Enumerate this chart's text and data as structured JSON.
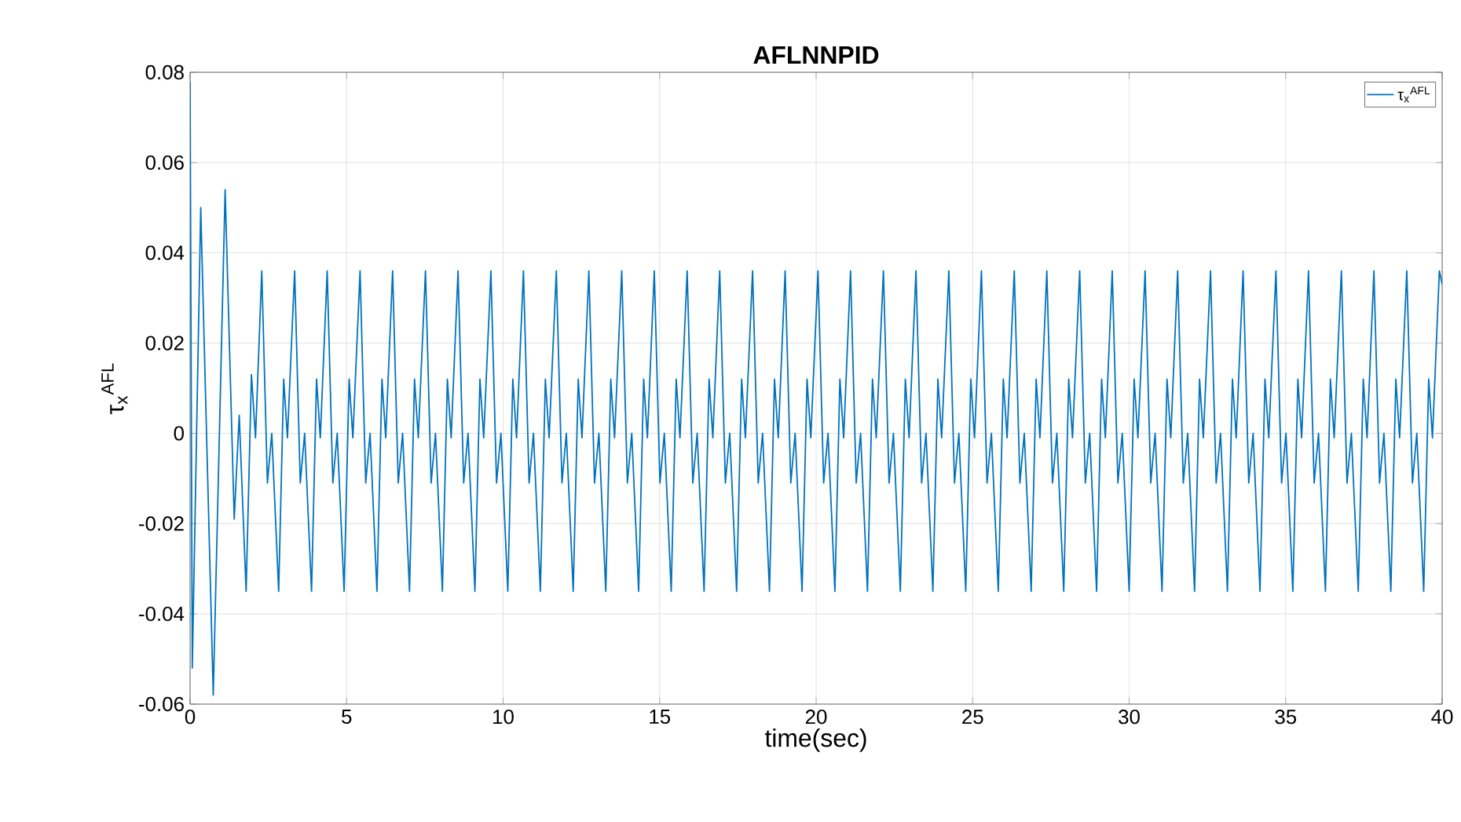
{
  "chart_data": {
    "type": "line",
    "title": "AFLNNPID",
    "xlabel": "time(sec)",
    "ylabel": "τ$_{x}$$^{AFL}$",
    "xlim": [
      0,
      40
    ],
    "ylim": [
      -0.06,
      0.08
    ],
    "xticks": [
      0,
      5,
      10,
      15,
      20,
      25,
      30,
      35,
      40
    ],
    "yticks": [
      -0.06,
      -0.04,
      -0.02,
      0,
      0.02,
      0.04,
      0.06,
      0.08
    ],
    "grid": true,
    "legend": "top right",
    "x": [
      0,
      0.07,
      0.34,
      0.74,
      1.12,
      1.41,
      1.57,
      1.79,
      1.96,
      2.09,
      2.29,
      2.47,
      2.61,
      2.83,
      2.99,
      3.11,
      3.34,
      3.52,
      3.66,
      3.88,
      4.04,
      4.16,
      4.38,
      4.56,
      4.7,
      4.92,
      5.08,
      5.2,
      5.43,
      5.61,
      5.75,
      5.97,
      6.13,
      6.25,
      6.47,
      6.65,
      6.79,
      7.01,
      7.17,
      7.29,
      7.52,
      7.7,
      7.84,
      8.06,
      8.22,
      8.34,
      8.56,
      8.74,
      8.88,
      9.1,
      9.26,
      9.38,
      9.61,
      9.79,
      9.93,
      10.15,
      10.31,
      10.43,
      10.65,
      10.83,
      10.97,
      11.19,
      11.35,
      11.47,
      11.7,
      11.88,
      12.02,
      12.24,
      12.4,
      12.52,
      12.74,
      12.92,
      13.06,
      13.28,
      13.44,
      13.56,
      13.79,
      13.97,
      14.11,
      14.33,
      14.49,
      14.61,
      14.83,
      15.01,
      15.15,
      15.37,
      15.53,
      15.65,
      15.88,
      16.06,
      16.2,
      16.42,
      16.58,
      16.7,
      16.92,
      17.1,
      17.24,
      17.46,
      17.62,
      17.74,
      17.97,
      18.15,
      18.29,
      18.51,
      18.67,
      18.79,
      19.01,
      19.19,
      19.33,
      19.55,
      19.71,
      19.83,
      20.06,
      20.24,
      20.38,
      20.6,
      20.76,
      20.88,
      21.1,
      21.28,
      21.42,
      21.64,
      21.8,
      21.92,
      22.15,
      22.33,
      22.47,
      22.69,
      22.85,
      22.97,
      23.19,
      23.37,
      23.51,
      23.73,
      23.89,
      24.01,
      24.24,
      24.42,
      24.56,
      24.78,
      24.94,
      25.06,
      25.28,
      25.46,
      25.6,
      25.82,
      25.98,
      26.1,
      26.33,
      26.51,
      26.65,
      26.87,
      27.03,
      27.15,
      27.37,
      27.55,
      27.69,
      27.91,
      28.07,
      28.19,
      28.42,
      28.6,
      28.74,
      28.96,
      29.12,
      29.24,
      29.46,
      29.64,
      29.78,
      30.0,
      30.16,
      30.28,
      30.51,
      30.69,
      30.83,
      31.05,
      31.21,
      31.33,
      31.55,
      31.73,
      31.87,
      32.09,
      32.25,
      32.37,
      32.6,
      32.78,
      32.92,
      33.14,
      33.3,
      33.42,
      33.64,
      33.82,
      33.96,
      34.18,
      34.34,
      34.46,
      34.69,
      34.87,
      35.01,
      35.23,
      35.39,
      35.51,
      35.73,
      35.91,
      36.05,
      36.27,
      36.43,
      36.55,
      36.78,
      36.96,
      37.1,
      37.32,
      37.48,
      37.6,
      37.82,
      38.0,
      38.14,
      38.36,
      38.52,
      38.64,
      38.87,
      39.05,
      39.19,
      39.41,
      39.57,
      39.69,
      39.91,
      40
    ],
    "series": [
      {
        "name": "τ$_{x}$$^{AFL}$",
        "color": "#0072bd",
        "values": [
          0.078,
          -0.052,
          0.05,
          -0.058,
          0.054,
          -0.019,
          0.004,
          -0.035,
          0.013,
          -0.001,
          0.036,
          -0.011,
          0,
          -0.035,
          0.012,
          -0.001,
          0.036,
          -0.011,
          0,
          -0.035,
          0.012,
          -0.001,
          0.036,
          -0.011,
          0,
          -0.035,
          0.012,
          -0.001,
          0.036,
          -0.011,
          0,
          -0.035,
          0.012,
          -0.001,
          0.036,
          -0.011,
          0,
          -0.035,
          0.012,
          -0.001,
          0.036,
          -0.011,
          0,
          -0.035,
          0.012,
          -0.001,
          0.036,
          -0.011,
          0,
          -0.035,
          0.012,
          -0.001,
          0.036,
          -0.011,
          0,
          -0.035,
          0.012,
          -0.001,
          0.036,
          -0.011,
          0,
          -0.035,
          0.012,
          -0.001,
          0.036,
          -0.011,
          0,
          -0.035,
          0.012,
          -0.001,
          0.036,
          -0.011,
          0,
          -0.035,
          0.012,
          -0.001,
          0.036,
          -0.011,
          0,
          -0.035,
          0.012,
          -0.001,
          0.036,
          -0.011,
          0,
          -0.035,
          0.012,
          -0.001,
          0.036,
          -0.011,
          0,
          -0.035,
          0.012,
          -0.001,
          0.036,
          -0.011,
          0,
          -0.035,
          0.012,
          -0.001,
          0.036,
          -0.011,
          0,
          -0.035,
          0.012,
          -0.001,
          0.036,
          -0.011,
          0,
          -0.035,
          0.012,
          -0.001,
          0.036,
          -0.011,
          0,
          -0.035,
          0.012,
          -0.001,
          0.036,
          -0.011,
          0,
          -0.035,
          0.012,
          -0.001,
          0.036,
          -0.011,
          0,
          -0.035,
          0.012,
          -0.001,
          0.036,
          -0.011,
          0,
          -0.035,
          0.012,
          -0.001,
          0.036,
          -0.011,
          0,
          -0.035,
          0.012,
          -0.001,
          0.036,
          -0.011,
          0,
          -0.035,
          0.012,
          -0.001,
          0.036,
          -0.011,
          0,
          -0.035,
          0.012,
          -0.001,
          0.036,
          -0.011,
          0,
          -0.035,
          0.012,
          -0.001,
          0.036,
          -0.011,
          0,
          -0.035,
          0.012,
          -0.001,
          0.036,
          -0.011,
          0,
          -0.035,
          0.012,
          -0.001,
          0.036,
          -0.011,
          0,
          -0.035,
          0.012,
          -0.001,
          0.036,
          -0.011,
          0,
          -0.035,
          0.012,
          -0.001,
          0.036,
          -0.011,
          0,
          -0.035,
          0.012,
          -0.001,
          0.036,
          -0.011,
          0,
          -0.035,
          0.012,
          -0.001,
          0.036,
          -0.011,
          0,
          -0.035,
          0.012,
          -0.001,
          0.036,
          -0.011,
          0,
          -0.035,
          0.012,
          -0.001,
          0.036,
          -0.011,
          0,
          -0.035,
          0.012,
          -0.001,
          0.036,
          -0.011,
          0,
          -0.035,
          0.012,
          -0.001,
          0.036,
          -0.011,
          0,
          -0.035,
          0.012,
          -0.001,
          0.036,
          0.033
        ]
      }
    ]
  }
}
